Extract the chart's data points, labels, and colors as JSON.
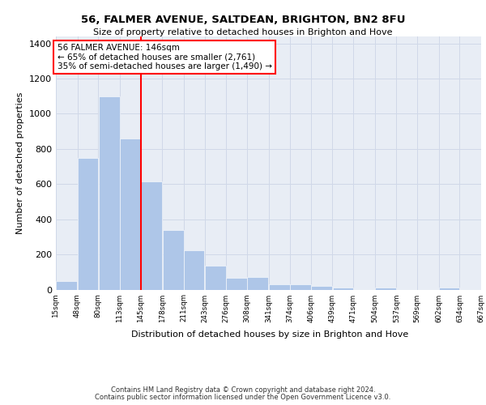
{
  "title1": "56, FALMER AVENUE, SALTDEAN, BRIGHTON, BN2 8FU",
  "title2": "Size of property relative to detached houses in Brighton and Hove",
  "xlabel": "Distribution of detached houses by size in Brighton and Hove",
  "ylabel": "Number of detached properties",
  "footer1": "Contains HM Land Registry data © Crown copyright and database right 2024.",
  "footer2": "Contains public sector information licensed under the Open Government Licence v3.0.",
  "annotation_line1": "56 FALMER AVENUE: 146sqm",
  "annotation_line2": "← 65% of detached houses are smaller (2,761)",
  "annotation_line3": "35% of semi-detached houses are larger (1,490) →",
  "bar_color": "#aec6e8",
  "bar_left_edges": [
    15,
    48,
    80,
    113,
    145,
    178,
    211,
    243,
    276,
    308,
    341,
    374,
    406,
    439,
    471,
    504,
    537,
    569,
    602,
    634
  ],
  "bar_widths": [
    33,
    32,
    33,
    32,
    33,
    33,
    32,
    33,
    32,
    33,
    33,
    32,
    33,
    32,
    33,
    33,
    32,
    33,
    32,
    33
  ],
  "bar_heights": [
    50,
    750,
    1100,
    860,
    615,
    340,
    225,
    135,
    65,
    70,
    30,
    30,
    20,
    12,
    0,
    12,
    0,
    0,
    12,
    0
  ],
  "bin_labels": [
    "15sqm",
    "48sqm",
    "80sqm",
    "113sqm",
    "145sqm",
    "178sqm",
    "211sqm",
    "243sqm",
    "276sqm",
    "308sqm",
    "341sqm",
    "374sqm",
    "406sqm",
    "439sqm",
    "471sqm",
    "504sqm",
    "537sqm",
    "569sqm",
    "602sqm",
    "634sqm",
    "667sqm"
  ],
  "red_line_x": 146,
  "ylim": [
    0,
    1440
  ],
  "xlim": [
    15,
    667
  ],
  "yticks": [
    0,
    200,
    400,
    600,
    800,
    1000,
    1200,
    1400
  ],
  "grid_color": "#d0d8e8",
  "background_color": "#e8edf5"
}
